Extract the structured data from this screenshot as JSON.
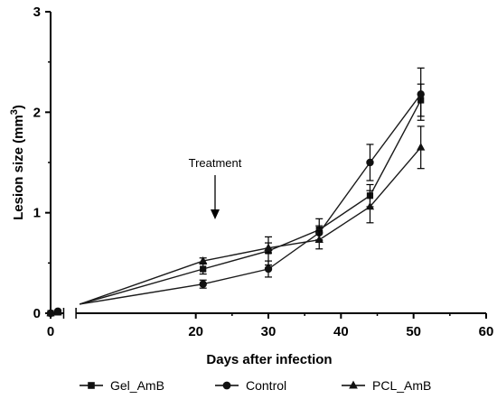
{
  "chart_data": {
    "type": "line",
    "title": "",
    "xlabel": "Days after infection",
    "ylabel_main": "Lesion size (mm",
    "ylabel_sup": "3",
    "ylabel_close": ")",
    "xlim": [
      0,
      60
    ],
    "ylim": [
      0,
      3
    ],
    "x_ticks": [
      0,
      20,
      30,
      40,
      50,
      60
    ],
    "y_ticks": [
      0,
      1,
      2,
      3
    ],
    "legend_position": "bottom",
    "annotation": {
      "text": "Treatment",
      "x": 30
    },
    "x": [
      0,
      1,
      21,
      30,
      37,
      44,
      51
    ],
    "series": [
      {
        "name": "Gel_AmB",
        "marker": "square",
        "color": "#1a1a1a",
        "values": [
          0.0,
          0.01,
          0.44,
          0.62,
          0.83,
          1.17,
          2.12
        ],
        "errors": [
          0.0,
          0.0,
          0.05,
          0.14,
          0.11,
          0.11,
          0.16
        ]
      },
      {
        "name": "Control",
        "marker": "circle",
        "color": "#1a1a1a",
        "values": [
          0.0,
          0.02,
          0.29,
          0.44,
          0.8,
          1.5,
          2.18
        ],
        "errors": [
          0.0,
          0.0,
          0.04,
          0.08,
          0.07,
          0.18,
          0.26
        ]
      },
      {
        "name": "PCL_AmB",
        "marker": "triangle",
        "color": "#1a1a1a",
        "values": [
          0.0,
          0.01,
          0.52,
          0.65,
          0.73,
          1.06,
          1.65
        ],
        "errors": [
          0.0,
          0.0,
          0.03,
          0.05,
          0.09,
          0.16,
          0.21
        ]
      }
    ],
    "grid": false
  }
}
